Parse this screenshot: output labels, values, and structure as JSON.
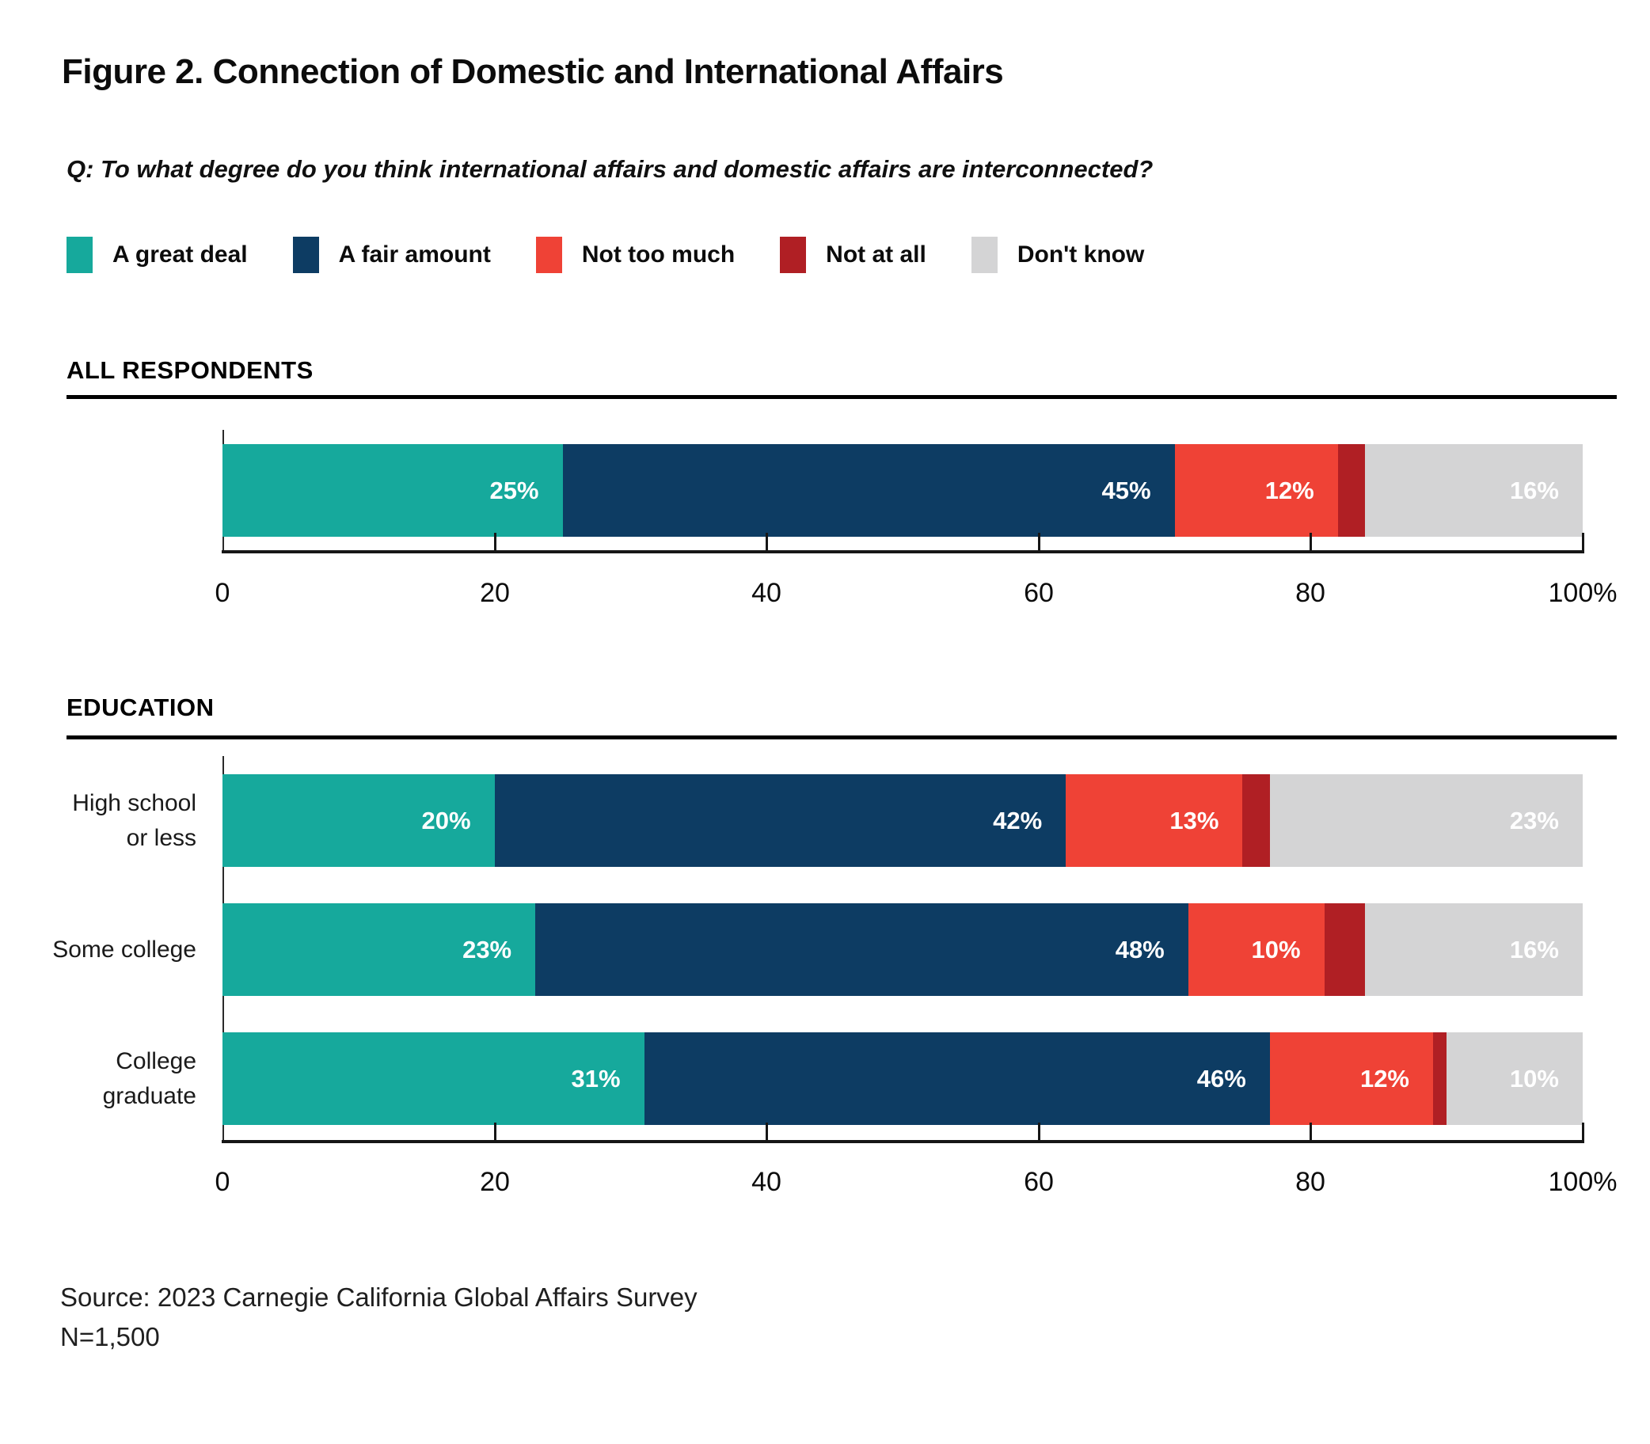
{
  "title": "Figure 2. Connection of Domestic and International Affairs",
  "question": "Q: To what degree do you think international affairs and domestic affairs are interconnected?",
  "legend": [
    {
      "label": "A great deal",
      "color": "#16A99C"
    },
    {
      "label": "A fair amount",
      "color": "#0D3C63"
    },
    {
      "label": "Not too much",
      "color": "#EF4236"
    },
    {
      "label": "Not at all",
      "color": "#B01F24"
    },
    {
      "label": "Don't know",
      "color": "#D4D4D5"
    }
  ],
  "source": {
    "line1": "Source: 2023 Carnegie California Global Affairs Survey",
    "line2": "N=1,500"
  },
  "chart_data": {
    "type": "bar",
    "stacked": true,
    "orientation": "horizontal",
    "unit": "percent",
    "xlim": [
      0,
      100
    ],
    "x_ticks": [
      "0",
      "20",
      "40",
      "60",
      "80",
      "100%"
    ],
    "series_names": [
      "A great deal",
      "A fair amount",
      "Not too much",
      "Not at all",
      "Don't know"
    ],
    "sections": [
      {
        "header": "ALL RESPONDENTS",
        "rows": [
          {
            "label": "",
            "values": [
              25,
              45,
              12,
              2,
              16
            ],
            "value_labels": [
              "25%",
              "45%",
              "12%",
              "",
              "16%"
            ]
          }
        ]
      },
      {
        "header": "EDUCATION",
        "rows": [
          {
            "label": "High school\nor less",
            "values": [
              20,
              42,
              13,
              2,
              23
            ],
            "value_labels": [
              "20%",
              "42%",
              "13%",
              "",
              "23%"
            ]
          },
          {
            "label": "Some college",
            "values": [
              23,
              48,
              10,
              3,
              16
            ],
            "value_labels": [
              "23%",
              "48%",
              "10%",
              "",
              "16%"
            ]
          },
          {
            "label": "College\ngraduate",
            "values": [
              31,
              46,
              12,
              1,
              10
            ],
            "value_labels": [
              "31%",
              "46%",
              "12%",
              "",
              "10%"
            ]
          }
        ]
      }
    ]
  }
}
